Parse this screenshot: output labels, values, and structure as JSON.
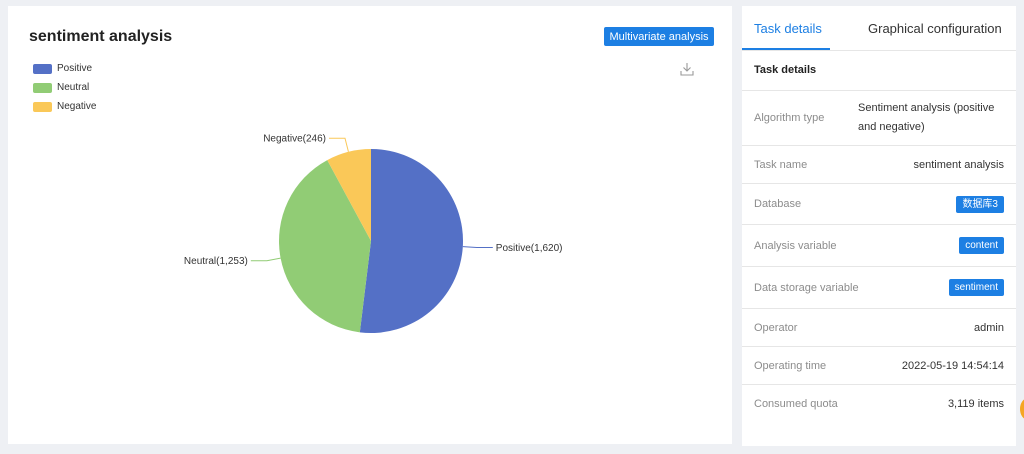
{
  "chart_panel": {
    "title": "sentiment analysis",
    "multivariate_button": "Multivariate analysis"
  },
  "chart_data": {
    "type": "pie",
    "title": "sentiment analysis",
    "legend_position": "top-left",
    "slices": [
      {
        "name": "Positive",
        "value": 1620,
        "label": "Positive(1,620)",
        "color": "#5470c6"
      },
      {
        "name": "Neutral",
        "value": 1253,
        "label": "Neutral(1,253)",
        "color": "#91cc75"
      },
      {
        "name": "Negative",
        "value": 246,
        "label": "Negative(246)",
        "color": "#fac858"
      }
    ]
  },
  "details_panel": {
    "tabs": [
      {
        "label": "Task details",
        "active": true
      },
      {
        "label": "Graphical configuration",
        "active": false
      }
    ],
    "section_title": "Task details",
    "rows": [
      {
        "key": "Algorithm type",
        "value": "Sentiment analysis (positive and negative)"
      },
      {
        "key": "Task name",
        "value": "sentiment analysis"
      },
      {
        "key": "Database",
        "value": "数据库3"
      },
      {
        "key": "Analysis variable",
        "value": "content"
      },
      {
        "key": "Data storage variable",
        "value": "sentiment"
      },
      {
        "key": "Operator",
        "value": "admin"
      },
      {
        "key": "Operating time",
        "value": "2022-05-19 14:54:14"
      },
      {
        "key": "Consumed quota",
        "value": "3,119 items"
      }
    ]
  },
  "colors": {
    "accent": "#1d7fe3",
    "positive": "#5470c6",
    "neutral": "#91cc75",
    "negative": "#fac858"
  }
}
